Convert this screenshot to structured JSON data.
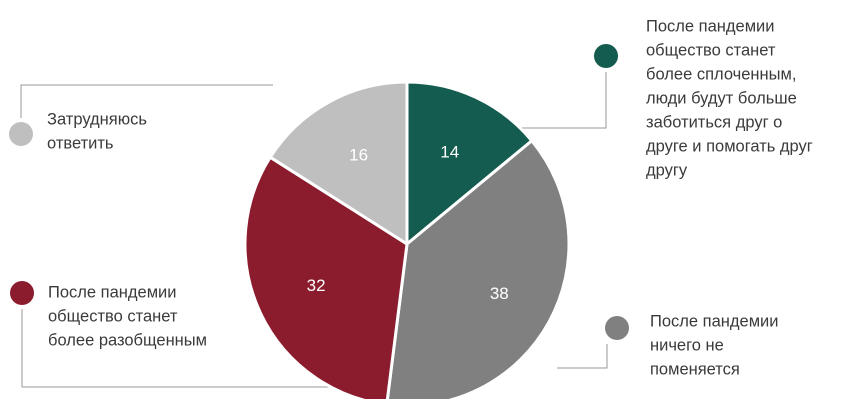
{
  "chart_data": {
    "type": "pie",
    "slices": [
      {
        "label": "После пандемии общество станет более сплоченным, люди будут больше заботиться друг о друге и помогать друг другу",
        "value": 14,
        "value_label": "14",
        "color": "#145c4f",
        "lines": [
          "После пандемии",
          "общество станет",
          "более сплоченным,",
          "люди будут больше",
          "заботиться друг о",
          "друге и помогать друг",
          "другу"
        ]
      },
      {
        "label": "После пандемии ничего не поменяется",
        "value": 38,
        "value_label": "38",
        "color": "#808080",
        "lines": [
          "После пандемии",
          "ничего не",
          "поменяется"
        ]
      },
      {
        "label": "После пандемии общество станет более разобщенным",
        "value": 32,
        "value_label": "32",
        "color": "#8b1c2e",
        "lines": [
          "После пандемии",
          "общество станет",
          "более разобщенным"
        ]
      },
      {
        "label": "Затрудняюсь ответить",
        "value": 16,
        "value_label": "16",
        "color": "#bfbfbf",
        "lines": [
          "Затрудняюсь",
          "ответить"
        ]
      }
    ],
    "start_angle": "12 o'clock",
    "direction": "clockwise",
    "legend": "callouts around pie"
  }
}
